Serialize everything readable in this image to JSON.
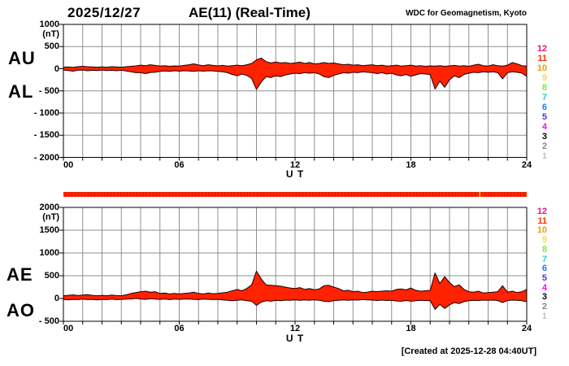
{
  "header": {
    "date": "2025/12/27",
    "title": "AE(11) (Real-Time)",
    "credit": "WDC for Geomagnetism, Kyoto"
  },
  "footer": {
    "created": "[Created at 2025-12-28 04:40UT]"
  },
  "station_scale": {
    "values": [
      "12",
      "11",
      "10",
      "9",
      "8",
      "7",
      "6",
      "5",
      "4",
      "3",
      "2",
      "1"
    ],
    "colors": [
      "#e8117f",
      "#ff3300",
      "#ff9900",
      "#ffdd22",
      "#77ee33",
      "#30cccc",
      "#2277ff",
      "#5b33cc",
      "#ff00ff",
      "#000000",
      "#888888",
      "#c4c4c4"
    ]
  },
  "chart_data": {
    "type": "area",
    "title": "AE(11) (Real-Time)",
    "x": {
      "label": "U T",
      "tick_labels": [
        "00",
        "06",
        "12",
        "18",
        "24"
      ],
      "tick_hours": [
        0,
        6,
        12,
        18,
        24
      ],
      "range_hours": [
        0,
        24
      ],
      "grid_step_hours": 1,
      "sample_step_hours": 0.25
    },
    "fill_color": "#ff2200",
    "stroke_color": "#200000",
    "grid_color": "#8f8f8f",
    "frame_color": "#000000",
    "availability_bar": {
      "color": "#ff2200",
      "stripe_color": "#d41c00",
      "marker_color": "#eeaa00",
      "marker_hour": 21.56
    },
    "panels": [
      {
        "name": "AU-AL",
        "left_labels": [
          "AU",
          "AL"
        ],
        "unit": "(nT)",
        "ylim": [
          -2000,
          1000
        ],
        "yticks": [
          1000,
          500,
          0,
          -500,
          -1000,
          -1500,
          -2000
        ],
        "series": [
          {
            "name": "AU",
            "values": [
              35,
              40,
              30,
              45,
              55,
              45,
              40,
              35,
              40,
              35,
              45,
              40,
              35,
              45,
              55,
              65,
              80,
              70,
              90,
              75,
              60,
              70,
              55,
              65,
              60,
              75,
              90,
              110,
              85,
              70,
              90,
              75,
              65,
              75,
              60,
              70,
              80,
              70,
              90,
              120,
              200,
              240,
              160,
              130,
              150,
              130,
              140,
              120,
              130,
              150,
              120,
              140,
              110,
              120,
              140,
              120,
              130,
              110,
              90,
              100,
              80,
              90,
              70,
              80,
              90,
              70,
              80,
              60,
              70,
              80,
              60,
              70,
              80,
              60,
              70,
              55,
              65,
              60,
              70,
              55,
              65,
              75,
              60,
              70,
              55,
              80,
              100,
              70,
              60,
              90,
              70,
              60,
              80,
              140,
              110,
              70,
              60
            ]
          },
          {
            "name": "AL",
            "values": [
              -30,
              -40,
              -55,
              -35,
              -30,
              -45,
              -35,
              -40,
              -30,
              -40,
              -35,
              -45,
              -35,
              -50,
              -70,
              -90,
              -90,
              -110,
              -85,
              -80,
              -60,
              -50,
              -60,
              -45,
              -55,
              -45,
              -50,
              -60,
              -45,
              -55,
              -45,
              -50,
              -60,
              -70,
              -90,
              -130,
              -160,
              -120,
              -150,
              -220,
              -470,
              -300,
              -180,
              -200,
              -160,
              -180,
              -140,
              -120,
              -100,
              -110,
              -90,
              -100,
              -90,
              -120,
              -180,
              -200,
              -150,
              -120,
              -90,
              -100,
              -80,
              -90,
              -70,
              -80,
              -90,
              -110,
              -90,
              -120,
              -100,
              -140,
              -160,
              -130,
              -170,
              -140,
              -110,
              -120,
              -130,
              -460,
              -280,
              -420,
              -250,
              -160,
              -200,
              -130,
              -100,
              -80,
              -90,
              -70,
              -80,
              -70,
              -90,
              -230,
              -90,
              -70,
              -80,
              -100,
              -170
            ]
          }
        ]
      },
      {
        "name": "AE-AO",
        "left_labels": [
          "AE",
          "AO"
        ],
        "unit": "(nT)",
        "ylim": [
          -500,
          2000
        ],
        "yticks": [
          2000,
          1500,
          1000,
          500,
          0,
          -500
        ],
        "series": [
          {
            "name": "AE",
            "values": [
              60,
              70,
              80,
              65,
              75,
              85,
              70,
              60,
              70,
              60,
              75,
              65,
              60,
              80,
              110,
              130,
              150,
              160,
              140,
              150,
              110,
              120,
              100,
              110,
              100,
              110,
              120,
              140,
              110,
              100,
              120,
              105,
              110,
              125,
              140,
              170,
              200,
              170,
              220,
              300,
              600,
              430,
              300,
              290,
              280,
              270,
              250,
              230,
              220,
              240,
              200,
              220,
              190,
              210,
              280,
              290,
              250,
              220,
              170,
              180,
              150,
              160,
              130,
              140,
              160,
              150,
              160,
              170,
              160,
              200,
              210,
              190,
              230,
              180,
              160,
              170,
              180,
              560,
              330,
              480,
              350,
              260,
              300,
              200,
              150,
              140,
              160,
              120,
              130,
              140,
              150,
              280,
              140,
              160,
              130,
              150,
              200
            ]
          },
          {
            "name": "AO",
            "values": [
              -20,
              -30,
              -20,
              -25,
              -15,
              -25,
              -20,
              -30,
              -20,
              -25,
              -15,
              -25,
              -20,
              -15,
              -10,
              0,
              -10,
              -20,
              -5,
              -15,
              -20,
              -10,
              -25,
              -15,
              -20,
              -15,
              -10,
              -20,
              -25,
              -15,
              -20,
              -25,
              -20,
              -30,
              -40,
              -50,
              -40,
              -30,
              -50,
              -60,
              -150,
              -80,
              -50,
              -60,
              -40,
              -50,
              -35,
              -40,
              -30,
              -40,
              -30,
              -40,
              -30,
              -40,
              -60,
              -70,
              -50,
              -40,
              -30,
              -40,
              -30,
              -35,
              -25,
              -30,
              -35,
              -45,
              -35,
              -45,
              -40,
              -55,
              -60,
              -45,
              -60,
              -50,
              -40,
              -45,
              -50,
              -240,
              -130,
              -220,
              -140,
              -90,
              -110,
              -70,
              -50,
              -40,
              -45,
              -35,
              -40,
              -35,
              -45,
              -90,
              -45,
              -35,
              -40,
              -50,
              -70
            ]
          }
        ]
      }
    ]
  }
}
